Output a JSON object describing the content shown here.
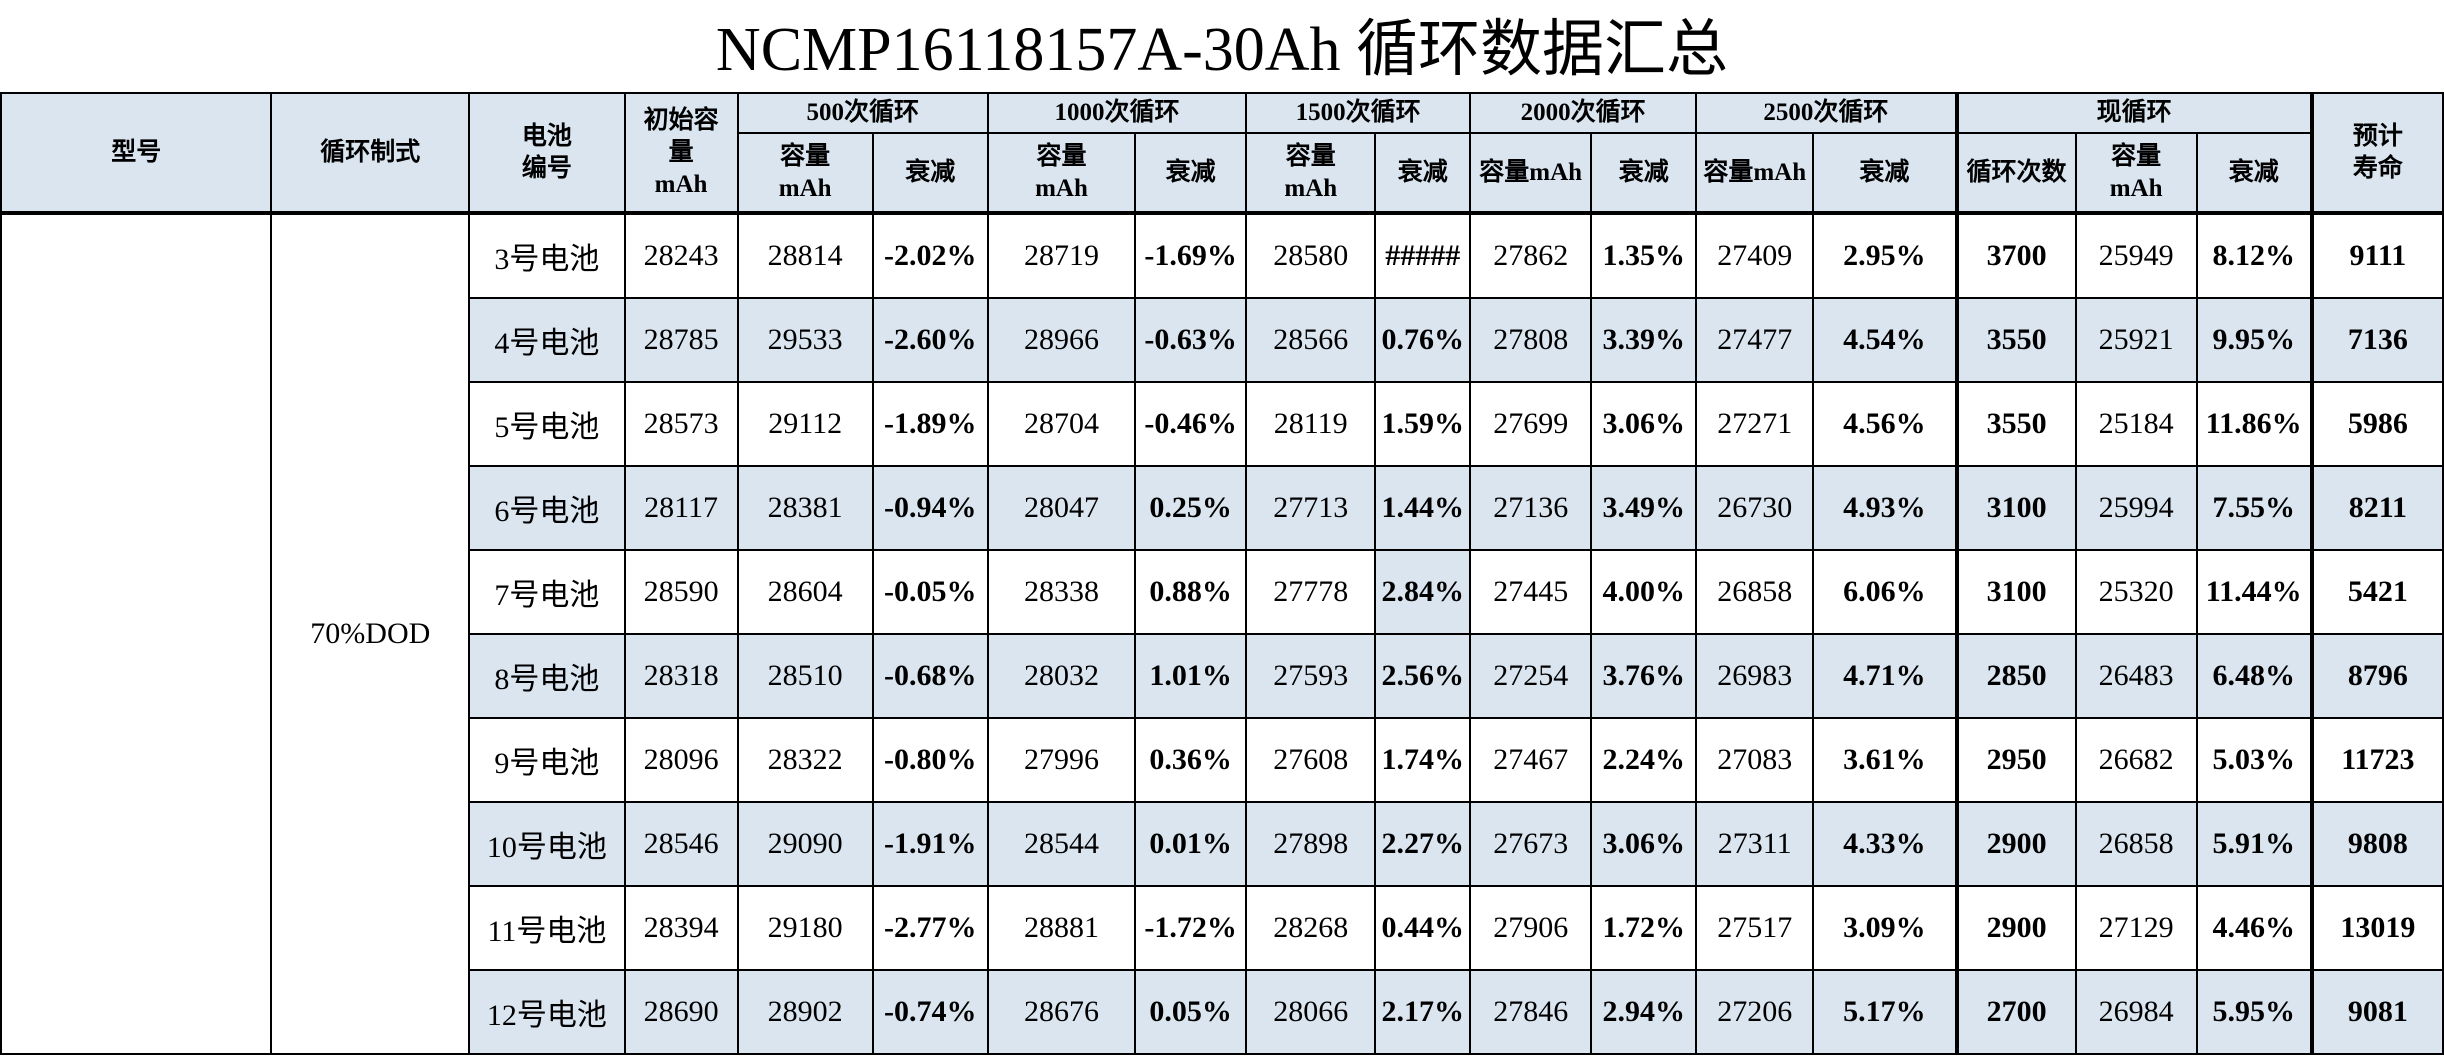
{
  "title": "NCMP16118157A-30Ah 循环数据汇总",
  "header": {
    "model": "型号",
    "cycle_mode": "循环制式",
    "cell_no": "电池\n编号",
    "initial_capacity": "初始容\n量\nmAh",
    "groups": [
      "500次循环",
      "1000次循环",
      "1500次循环",
      "2000次循环",
      "2500次循环",
      "现循环"
    ],
    "capacity_mah": "容量\nmAh",
    "capacity_mah_inline": "容量mAh",
    "decay": "衰减",
    "cycle_count": "循环次数",
    "expected_life": "预计\n寿命"
  },
  "model_value": "",
  "cycle_mode_value": "70%DOD",
  "rows": [
    {
      "cell": "3号电池",
      "init": "28243",
      "c500": "28814",
      "d500": "-2.02%",
      "c1000": "28719",
      "d1000": "-1.69%",
      "c1500": "28580",
      "d1500": "#####",
      "c2000": "27862",
      "d2000": "1.35%",
      "c2500": "27409",
      "d2500": "2.95%",
      "cycles": "3700",
      "cnow": "25949",
      "dnow": "8.12%",
      "life": "9111"
    },
    {
      "cell": "4号电池",
      "init": "28785",
      "c500": "29533",
      "d500": "-2.60%",
      "c1000": "28966",
      "d1000": "-0.63%",
      "c1500": "28566",
      "d1500": "0.76%",
      "c2000": "27808",
      "d2000": "3.39%",
      "c2500": "27477",
      "d2500": "4.54%",
      "cycles": "3550",
      "cnow": "25921",
      "dnow": "9.95%",
      "life": "7136"
    },
    {
      "cell": "5号电池",
      "init": "28573",
      "c500": "29112",
      "d500": "-1.89%",
      "c1000": "28704",
      "d1000": "-0.46%",
      "c1500": "28119",
      "d1500": "1.59%",
      "c2000": "27699",
      "d2000": "3.06%",
      "c2500": "27271",
      "d2500": "4.56%",
      "cycles": "3550",
      "cnow": "25184",
      "dnow": "11.86%",
      "life": "5986"
    },
    {
      "cell": "6号电池",
      "init": "28117",
      "c500": "28381",
      "d500": "-0.94%",
      "c1000": "28047",
      "d1000": "0.25%",
      "c1500": "27713",
      "d1500": "1.44%",
      "c2000": "27136",
      "d2000": "3.49%",
      "c2500": "26730",
      "d2500": "4.93%",
      "cycles": "3100",
      "cnow": "25994",
      "dnow": "7.55%",
      "life": "8211"
    },
    {
      "cell": "7号电池",
      "init": "28590",
      "c500": "28604",
      "d500": "-0.05%",
      "c1000": "28338",
      "d1000": "0.88%",
      "c1500": "27778",
      "d1500": "2.84%",
      "c2000": "27445",
      "d2000": "4.00%",
      "c2500": "26858",
      "d2500": "6.06%",
      "cycles": "3100",
      "cnow": "25320",
      "dnow": "11.44%",
      "life": "5421"
    },
    {
      "cell": "8号电池",
      "init": "28318",
      "c500": "28510",
      "d500": "-0.68%",
      "c1000": "28032",
      "d1000": "1.01%",
      "c1500": "27593",
      "d1500": "2.56%",
      "c2000": "27254",
      "d2000": "3.76%",
      "c2500": "26983",
      "d2500": "4.71%",
      "cycles": "2850",
      "cnow": "26483",
      "dnow": "6.48%",
      "life": "8796"
    },
    {
      "cell": "9号电池",
      "init": "28096",
      "c500": "28322",
      "d500": "-0.80%",
      "c1000": "27996",
      "d1000": "0.36%",
      "c1500": "27608",
      "d1500": "1.74%",
      "c2000": "27467",
      "d2000": "2.24%",
      "c2500": "27083",
      "d2500": "3.61%",
      "cycles": "2950",
      "cnow": "26682",
      "dnow": "5.03%",
      "life": "11723"
    },
    {
      "cell": "10号电池",
      "init": "28546",
      "c500": "29090",
      "d500": "-1.91%",
      "c1000": "28544",
      "d1000": "0.01%",
      "c1500": "27898",
      "d1500": "2.27%",
      "c2000": "27673",
      "d2000": "3.06%",
      "c2500": "27311",
      "d2500": "4.33%",
      "cycles": "2900",
      "cnow": "26858",
      "dnow": "5.91%",
      "life": "9808"
    },
    {
      "cell": "11号电池",
      "init": "28394",
      "c500": "29180",
      "d500": "-2.77%",
      "c1000": "28881",
      "d1000": "-1.72%",
      "c1500": "28268",
      "d1500": "0.44%",
      "c2000": "27906",
      "d2000": "1.72%",
      "c2500": "27517",
      "d2500": "3.09%",
      "cycles": "2900",
      "cnow": "27129",
      "dnow": "4.46%",
      "life": "13019"
    },
    {
      "cell": "12号电池",
      "init": "28690",
      "c500": "28902",
      "d500": "-0.74%",
      "c1000": "28676",
      "d1000": "0.05%",
      "c1500": "28066",
      "d1500": "2.17%",
      "c2000": "27846",
      "d2000": "2.94%",
      "c2500": "27206",
      "d2500": "5.17%",
      "cycles": "2700",
      "cnow": "26984",
      "dnow": "5.95%",
      "life": "9081"
    }
  ],
  "colors": {
    "header_bg": "#dae5f0",
    "alt_row_bg": "#dae5f0",
    "border": "#000000"
  }
}
